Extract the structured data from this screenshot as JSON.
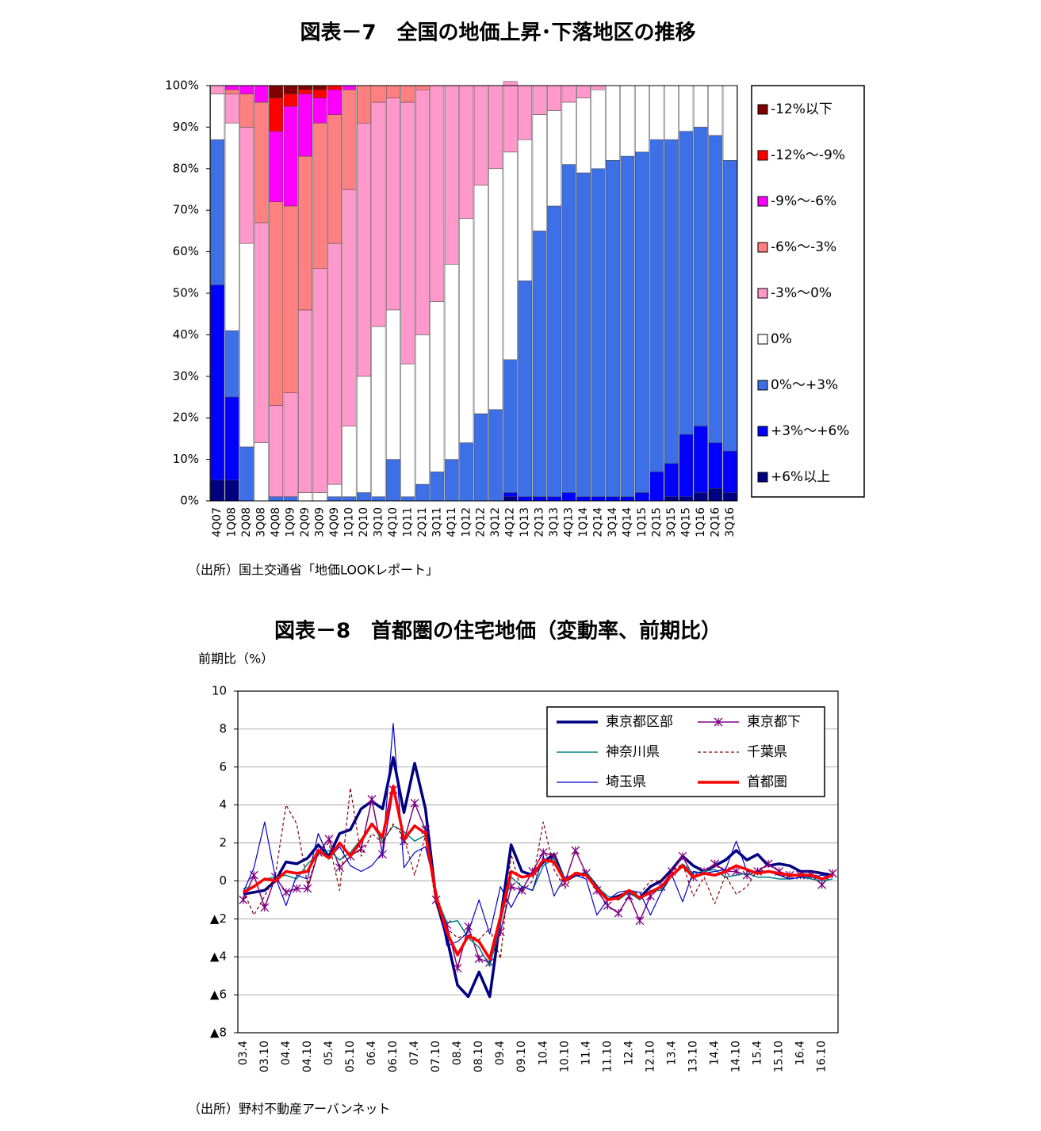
{
  "chart_data": [
    {
      "type": "bar",
      "stacked": true,
      "title": "図表－7　全国の地価上昇･下落地区の推移",
      "source": "（出所）国土交通省「地価LOOKレポート」",
      "categories": [
        "4Q07",
        "1Q08",
        "2Q08",
        "3Q08",
        "4Q08",
        "1Q09",
        "2Q09",
        "3Q09",
        "4Q09",
        "1Q10",
        "2Q10",
        "3Q10",
        "4Q10",
        "1Q11",
        "2Q11",
        "3Q11",
        "4Q11",
        "1Q12",
        "2Q12",
        "3Q12",
        "4Q12",
        "1Q13",
        "2Q13",
        "3Q13",
        "4Q13",
        "1Q14",
        "2Q14",
        "3Q14",
        "4Q14",
        "1Q15",
        "2Q15",
        "3Q15",
        "4Q15",
        "1Q16",
        "2Q16",
        "3Q16"
      ],
      "ylim": [
        0,
        100
      ],
      "yticks": [
        {
          "value": 0,
          "label": "0%"
        },
        {
          "value": 10,
          "label": "10%"
        },
        {
          "value": 20,
          "label": "20%"
        },
        {
          "value": 30,
          "label": "30%"
        },
        {
          "value": 40,
          "label": "40%"
        },
        {
          "value": 50,
          "label": "50%"
        },
        {
          "value": 60,
          "label": "60%"
        },
        {
          "value": 70,
          "label": "70%"
        },
        {
          "value": 80,
          "label": "80%"
        },
        {
          "value": 90,
          "label": "90%"
        },
        {
          "value": 100,
          "label": "100%"
        }
      ],
      "legend": "right",
      "series": [
        {
          "name": "-12%以下",
          "color": "#800000",
          "values": [
            0,
            0,
            0,
            0,
            3,
            2,
            1,
            1,
            0,
            0,
            0,
            0,
            0,
            0,
            0,
            0,
            0,
            0,
            0,
            0,
            0,
            0,
            0,
            0,
            0,
            0,
            0,
            0,
            0,
            0,
            0,
            0,
            0,
            0,
            0,
            0
          ]
        },
        {
          "name": "-12%～-9%",
          "color": "#ff0000",
          "values": [
            0,
            0,
            0,
            0,
            8,
            3,
            1,
            2,
            1,
            0,
            0,
            0,
            0,
            0,
            0,
            0,
            0,
            0,
            0,
            0,
            0,
            0,
            0,
            0,
            0,
            0,
            0,
            0,
            0,
            0,
            0,
            0,
            0,
            0,
            0,
            0
          ]
        },
        {
          "name": "-9%～-6%",
          "color": "#ff00ff",
          "values": [
            0,
            1,
            2,
            4,
            17,
            24,
            15,
            6,
            6,
            1,
            0,
            0,
            0,
            0,
            0,
            0,
            0,
            0,
            0,
            0,
            0,
            0,
            0,
            0,
            0,
            0,
            0,
            0,
            0,
            0,
            0,
            0,
            0,
            0,
            0,
            0
          ]
        },
        {
          "name": "-6%～-3%",
          "color": "#ff8080",
          "values": [
            0,
            1,
            8,
            29,
            49,
            45,
            37,
            35,
            31,
            24,
            9,
            4,
            3,
            4,
            1,
            0,
            0,
            0,
            0,
            0,
            0,
            0,
            0,
            0,
            0,
            0,
            0,
            0,
            0,
            0,
            0,
            0,
            0,
            0,
            0,
            0
          ]
        },
        {
          "name": "-3%～0%",
          "color": "#ff99cc",
          "values": [
            2,
            7,
            28,
            53,
            22,
            25,
            44,
            54,
            58,
            57,
            61,
            54,
            51,
            63,
            59,
            52,
            43,
            32,
            24,
            20,
            17,
            13,
            7,
            6,
            4,
            3,
            1,
            0,
            0,
            0,
            0,
            0,
            0,
            0,
            0,
            0
          ]
        },
        {
          "name": "0%",
          "color": "#ffffff",
          "values": [
            11,
            50,
            49,
            14,
            0,
            0,
            2,
            2,
            3,
            17,
            28,
            41,
            36,
            32,
            36,
            41,
            47,
            54,
            55,
            58,
            50,
            34,
            28,
            23,
            15,
            18,
            19,
            18,
            17,
            16,
            13,
            13,
            11,
            10,
            12,
            18
          ]
        },
        {
          "name": "0%～+3%",
          "color": "#3d6fe6",
          "values": [
            35,
            16,
            13,
            0,
            1,
            1,
            0,
            0,
            1,
            1,
            2,
            1,
            10,
            1,
            4,
            7,
            10,
            14,
            21,
            22,
            32,
            52,
            64,
            70,
            79,
            78,
            79,
            81,
            82,
            82,
            80,
            78,
            73,
            72,
            74,
            70
          ]
        },
        {
          "name": "+3%～+6%",
          "color": "#0000ff",
          "values": [
            47,
            20,
            0,
            0,
            0,
            0,
            0,
            0,
            0,
            0,
            0,
            0,
            0,
            0,
            0,
            0,
            0,
            0,
            0,
            0,
            1,
            1,
            1,
            1,
            2,
            1,
            1,
            1,
            1,
            2,
            7,
            8,
            15,
            16,
            11,
            10
          ]
        },
        {
          "name": "+6%以上",
          "color": "#000080",
          "values": [
            5,
            5,
            0,
            0,
            0,
            0,
            0,
            0,
            0,
            0,
            0,
            0,
            0,
            0,
            0,
            0,
            0,
            0,
            0,
            0,
            1,
            0,
            0,
            0,
            0,
            0,
            0,
            0,
            0,
            0,
            0,
            1,
            1,
            2,
            3,
            2
          ]
        }
      ]
    },
    {
      "type": "line",
      "title": "図表－8　首都圏の住宅地価（変動率、前期比）",
      "ylabel": "前期比（%）",
      "source": "（出所）野村不動産アーバンネット",
      "categories": [
        "03.4",
        null,
        "03.10",
        null,
        "04.4",
        null,
        "04.10",
        null,
        "05.4",
        null,
        "05.10",
        null,
        "06.4",
        null,
        "06.10",
        null,
        "07.4",
        null,
        "07.10",
        null,
        "08.4",
        null,
        "08.10",
        null,
        "09.4",
        null,
        "09.10",
        null,
        "10.4",
        null,
        "10.10",
        null,
        "11.4",
        null,
        "11.10",
        null,
        "12.4",
        null,
        "12.10",
        null,
        "13.4",
        null,
        "13.10",
        null,
        "14.4",
        null,
        "14.10",
        null,
        "15.4",
        null,
        "15.10",
        null,
        "16.4",
        null,
        "16.10",
        null
      ],
      "ylim": [
        -8,
        10
      ],
      "yticks": [
        {
          "value": -8,
          "label": "▲8"
        },
        {
          "value": -6,
          "label": "▲6"
        },
        {
          "value": -4,
          "label": "▲4"
        },
        {
          "value": -2,
          "label": "▲2"
        },
        0,
        2,
        4,
        6,
        8,
        10
      ],
      "grid": true,
      "legend": "upper right",
      "series": [
        {
          "name": "東京都区部",
          "color": "#000080",
          "width": 3.5,
          "values": [
            -0.7,
            -0.6,
            -0.5,
            0,
            1.0,
            0.9,
            1.2,
            1.9,
            1.3,
            2.5,
            2.7,
            3.8,
            4.2,
            3.8,
            6.5,
            3.6,
            6.2,
            3.8,
            -1.0,
            -3.0,
            -5.5,
            -6.1,
            -4.8,
            -6.1,
            -2.0,
            1.9,
            0.5,
            0.3,
            1.0,
            1.4,
            0,
            0.3,
            0.4,
            -0.3,
            -1.0,
            -0.8,
            -0.6,
            -0.9,
            -0.3,
            0,
            0.6,
            1.3,
            0.8,
            0.5,
            0.8,
            1.1,
            1.6,
            1.1,
            1.4,
            0.8,
            0.9,
            0.8,
            0.5,
            0.5,
            0.4,
            0.3
          ]
        },
        {
          "name": "東京都下",
          "color": "#800080",
          "width": 1.5,
          "marker": "asterisk",
          "values": [
            -1.0,
            0.3,
            -1.4,
            0.2,
            -0.6,
            -0.4,
            -0.4,
            1.5,
            2.2,
            0.7,
            1.3,
            1.7,
            4.3,
            1.4,
            4.8,
            2.1,
            4.1,
            2.7,
            -1.0,
            -2.3,
            -4.6,
            -2.4,
            -4.1,
            -4.3,
            -2.7,
            -0.3,
            -0.5,
            0.5,
            1.5,
            1.3,
            -0.1,
            1.6,
            0.4,
            -0.5,
            -1.3,
            -1.7,
            -0.8,
            -2.1,
            -0.8,
            -0.3,
            0.5,
            1.3,
            0.2,
            0.5,
            0.9,
            0.5,
            0.5,
            0.3,
            0.5,
            0.9,
            0.5,
            0.3,
            0.3,
            0.3,
            -0.2,
            0.4
          ]
        },
        {
          "name": "神奈川県",
          "color": "#008080",
          "width": 1.5,
          "values": [
            -0.4,
            -0.3,
            0.1,
            0.2,
            0.3,
            0.1,
            0.9,
            1.4,
            1.6,
            1.1,
            1.5,
            2.2,
            3.0,
            2.1,
            2.9,
            2.6,
            2.1,
            2.4,
            -0.8,
            -2.2,
            -2.1,
            -3.0,
            -3.5,
            -4.5,
            -2.2,
            0.2,
            -0.3,
            -0.5,
            0.8,
            1.2,
            0.1,
            0.3,
            0.4,
            -0.3,
            -0.8,
            -1.0,
            -0.6,
            -1.0,
            -0.5,
            -0.5,
            0.3,
            0.9,
            0.4,
            0.5,
            0.6,
            0.2,
            0.3,
            0.4,
            0.2,
            0.2,
            0.1,
            0.1,
            0.2,
            0.1,
            0.0,
            0.1
          ]
        },
        {
          "name": "千葉県",
          "color": "#800000",
          "width": 1.2,
          "dash": "4,3",
          "values": [
            -0.5,
            -1.8,
            -0.8,
            0.3,
            4.0,
            3.0,
            -0.2,
            1.5,
            2.0,
            -0.5,
            4.9,
            1.3,
            2.5,
            2.0,
            3.0,
            2.3,
            0.3,
            2.4,
            -1.3,
            -2.5,
            -3.0,
            -2.8,
            -3.1,
            -2.5,
            -4.1,
            1.4,
            -0.6,
            0,
            3.1,
            0.6,
            -0.4,
            0.5,
            0.3,
            -0.3,
            -0.9,
            -1.0,
            -0.5,
            -0.7,
            0,
            0,
            0.5,
            0.9,
            -0.8,
            0.2,
            -1.2,
            0.3,
            -0.7,
            -0.3,
            0.6,
            0.5,
            0.3,
            0.2,
            0.4,
            0.3,
            0.3,
            0.2
          ]
        },
        {
          "name": "埼玉県",
          "color": "#0000cc",
          "width": 1.2,
          "values": [
            -0.6,
            0.7,
            3.1,
            0.2,
            -1.3,
            0.3,
            0.1,
            2.5,
            1.2,
            1.8,
            0.8,
            0.5,
            0.8,
            1.5,
            8.3,
            0.7,
            1.5,
            1.8,
            -0.5,
            -3.4,
            -3.2,
            -2.7,
            -1.0,
            -2.8,
            -0.3,
            -1.4,
            -0.3,
            -0.5,
            1.3,
            -0.8,
            0.2,
            0.3,
            0.1,
            -1.8,
            -1.0,
            -0.6,
            -0.5,
            -0.6,
            -1.8,
            -0.6,
            0.3,
            -1.1,
            0.5,
            0.4,
            0.5,
            0.6,
            2.1,
            0.5,
            0.5,
            0.5,
            0.3,
            0.1,
            0.2,
            0.2,
            0.3,
            0.2
          ]
        },
        {
          "name": "首都圏",
          "color": "#ff0000",
          "width": 3.5,
          "values": [
            -0.6,
            -0.3,
            0.1,
            0,
            0.5,
            0.4,
            0.5,
            1.6,
            1.2,
            2.0,
            1.3,
            2.1,
            3.0,
            2.3,
            5.0,
            2.2,
            2.9,
            2.5,
            -0.8,
            -2.7,
            -3.9,
            -2.9,
            -3.2,
            -4.1,
            -1.9,
            0.5,
            0.2,
            0.3,
            1.1,
            1.0,
            0,
            0.4,
            0.3,
            -0.4,
            -1.0,
            -0.9,
            -0.5,
            -0.9,
            -0.6,
            -0.3,
            0.3,
            0.8,
            0.2,
            0.4,
            0.3,
            0.5,
            0.8,
            0.6,
            0.4,
            0.5,
            0.4,
            0.3,
            0.3,
            0.3,
            0.1,
            0.3
          ]
        }
      ]
    }
  ]
}
